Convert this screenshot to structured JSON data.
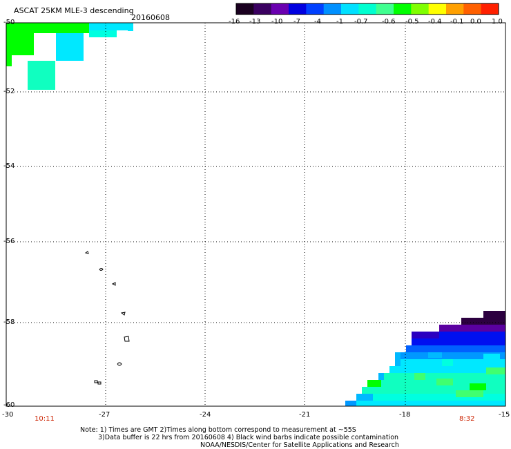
{
  "header": {
    "title": "ASCAT 25KM MLE-3 descending",
    "date": "20160608"
  },
  "colorbar": {
    "colors": [
      "#1a0020",
      "#3a0060",
      "#6a00b0",
      "#0000e0",
      "#0040ff",
      "#0090ff",
      "#00e0ff",
      "#00ffd0",
      "#40ff90",
      "#00ff00",
      "#80ff00",
      "#ffff00",
      "#ffa000",
      "#ff6000",
      "#ff2000"
    ],
    "tick_labels": [
      "-16",
      "-13",
      "-10",
      "-7",
      "-4",
      "-1",
      "-0.7",
      "-0.6",
      "-0.5",
      "-0.4",
      "-0.1",
      "0.0",
      "1.0"
    ]
  },
  "map": {
    "lon_labels": [
      "-30",
      "-27",
      "-24",
      "-21",
      "-18",
      "-15"
    ],
    "lat_labels": [
      "-50",
      "-52",
      "-54",
      "-56",
      "-58",
      "-60"
    ],
    "lon_range": [
      -30,
      -15
    ],
    "lat_range": [
      -50,
      -60
    ],
    "grid": "dotted"
  },
  "times": {
    "left": "10:11",
    "right": "8:32",
    "color": "#cc2200"
  },
  "notes": [
    "Note: 1) Times are GMT 2)Times along bottom correspond to measurement at ~55S",
    "3)Data buffer is 22 hrs from 20160608 4) Black wind barbs indicate possible contamination",
    "NOAA/NESDIS/Center for Satellite Applications and Research"
  ]
}
